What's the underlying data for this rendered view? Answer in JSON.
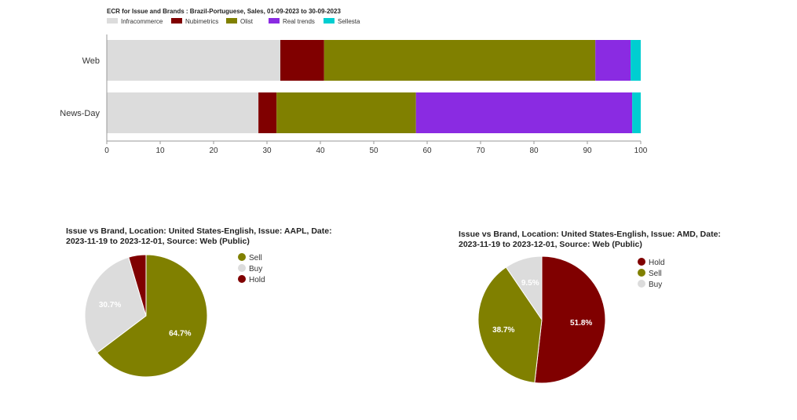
{
  "chart_data": [
    {
      "type": "bar",
      "orientation": "horizontal",
      "stacked": true,
      "title": "ECR for Issue and Brands : Brazil-Portuguese, Sales, 01-09-2023 to 30-09-2023",
      "categories": [
        "Web",
        "News-Day"
      ],
      "series": [
        {
          "name": "Infracommerce",
          "color": "#dcdcdc",
          "values": [
            32.5,
            28.4
          ]
        },
        {
          "name": "Nubimetrics",
          "color": "#800000",
          "values": [
            8.2,
            3.4
          ]
        },
        {
          "name": "Olist",
          "color": "#808000",
          "values": [
            50.8,
            26.1
          ]
        },
        {
          "name": "Real trends",
          "color": "#8a2be2",
          "values": [
            6.6,
            40.5
          ]
        },
        {
          "name": "Sellesta",
          "color": "#00ced1",
          "values": [
            1.9,
            1.6
          ]
        }
      ],
      "xlim": [
        0,
        100
      ],
      "xticks": [
        0,
        10,
        20,
        30,
        40,
        50,
        60,
        70,
        80,
        90,
        100
      ],
      "legend": "top-left"
    },
    {
      "type": "pie",
      "title": [
        "Issue vs Brand, Location: United States-English, Issue: AAPL, Date:",
        "2023-11-19 to 2023-12-01, Source: Web (Public)"
      ],
      "slices": [
        {
          "label": "Sell",
          "value": 64.7,
          "color": "#808000",
          "text": "64.7%"
        },
        {
          "label": "Buy",
          "value": 30.7,
          "color": "#dcdcdc",
          "text": "30.7%"
        },
        {
          "label": "Hold",
          "value": 4.6,
          "color": "#800000",
          "text": ""
        }
      ],
      "legend": "right"
    },
    {
      "type": "pie",
      "title": [
        "Issue vs Brand, Location: United States-English, Issue: AMD, Date:",
        "2023-11-19 to 2023-12-01, Source: Web (Public)"
      ],
      "slices": [
        {
          "label": "Hold",
          "value": 51.8,
          "color": "#800000",
          "text": "51.8%"
        },
        {
          "label": "Sell",
          "value": 38.7,
          "color": "#808000",
          "text": "38.7%"
        },
        {
          "label": "Buy",
          "value": 9.5,
          "color": "#dcdcdc",
          "text": "9.5%"
        }
      ],
      "legend": "right"
    }
  ]
}
